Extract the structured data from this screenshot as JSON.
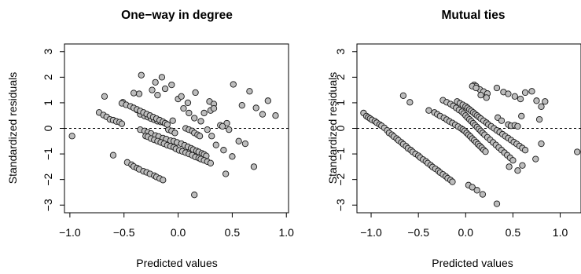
{
  "chart_data": [
    {
      "type": "scatter",
      "title": "One−way in degree",
      "xlabel": "Predicted values",
      "ylabel": "Standardized residuals",
      "xlim": [
        -1.05,
        1.02
      ],
      "ylim": [
        -3.3,
        3.3
      ],
      "xticks": [
        -1.0,
        -0.5,
        0.0,
        0.5,
        1.0
      ],
      "xtick_labels": [
        "−1.0",
        "−0.5",
        "0.0",
        "0.5",
        "1.0"
      ],
      "yticks": [
        -3,
        -2,
        -1,
        0,
        1,
        2,
        3
      ],
      "ytick_labels": [
        "−3",
        "−2",
        "−1",
        "0",
        "1",
        "2",
        "3"
      ],
      "reference_line_y": 0,
      "grid": false,
      "marker_color": "#bdbdbd",
      "x": [
        -0.98,
        -0.73,
        -0.69,
        -0.66,
        -0.63,
        -0.6,
        -0.57,
        -0.54,
        -0.52,
        -0.68,
        -0.6,
        -0.51,
        -0.47,
        -0.43,
        -0.41,
        -0.38,
        -0.36,
        -0.32,
        -0.29,
        -0.26,
        -0.22,
        -0.2,
        -0.17,
        -0.14,
        -0.38,
        -0.35,
        -0.31,
        -0.28,
        -0.25,
        -0.22,
        -0.19,
        -0.16,
        -0.13,
        -0.11,
        -0.09,
        -0.06,
        -0.03,
        -0.35,
        -0.31,
        -0.28,
        -0.25,
        -0.21,
        -0.18,
        -0.14,
        -0.11,
        -0.07,
        -0.04,
        -0.01,
        0.03,
        0.06,
        0.09,
        0.12,
        0.14,
        0.17,
        0.19,
        0.22,
        0.24,
        0.26,
        -0.3,
        -0.28,
        -0.25,
        -0.22,
        -0.19,
        -0.16,
        -0.13,
        -0.1,
        -0.07,
        -0.04,
        -0.02,
        0.01,
        0.04,
        0.07,
        0.1,
        0.13,
        0.16,
        0.19,
        0.21,
        0.24,
        0.27,
        0.3,
        -0.52,
        -0.48,
        -0.44,
        -0.41,
        -0.38,
        -0.35,
        -0.32,
        -0.29,
        -0.26,
        -0.23,
        -0.2,
        -0.17,
        -0.14,
        -0.12,
        -0.1,
        0.07,
        0.1,
        0.13,
        0.15,
        0.18,
        0.2,
        -0.24,
        -0.19,
        -0.12,
        -0.06,
        0.0,
        0.05,
        0.1,
        0.15,
        0.21,
        0.27,
        0.31,
        0.35,
        0.42,
        0.5,
        0.56,
        0.62,
        -0.36,
        -0.34,
        -0.21,
        -0.15,
        -0.05,
        0.03,
        0.09,
        0.16,
        0.24,
        0.29,
        0.33,
        0.45,
        0.51,
        0.59,
        0.66,
        0.72,
        0.78,
        0.83,
        0.9,
        -0.41,
        0.15,
        0.44,
        0.7,
        0.39,
        0.41,
        0.47,
        0.3,
        0.33
      ],
      "y": [
        -0.3,
        0.62,
        0.52,
        0.45,
        0.35,
        0.32,
        0.27,
        0.24,
        0.18,
        1.25,
        -1.05,
        1.02,
        -1.33,
        -1.42,
        -1.49,
        -1.55,
        -1.6,
        -1.68,
        -1.72,
        -1.78,
        -1.85,
        -1.9,
        -1.96,
        -2.02,
        0.72,
        0.55,
        0.48,
        0.44,
        0.38,
        0.33,
        0.28,
        0.25,
        0.22,
        0.18,
        -0.05,
        -0.1,
        -0.18,
        -0.05,
        -0.1,
        -0.15,
        -0.2,
        -0.28,
        -0.32,
        -0.38,
        -0.42,
        -0.48,
        -0.5,
        -0.55,
        -0.6,
        -0.66,
        -0.72,
        -0.78,
        -0.83,
        -0.88,
        -0.92,
        -0.98,
        -1.02,
        -1.08,
        -0.3,
        -0.33,
        -0.4,
        -0.45,
        -0.5,
        -0.55,
        -0.6,
        -0.66,
        -0.7,
        -0.74,
        -0.8,
        -0.86,
        -0.9,
        -0.95,
        -1.0,
        -1.05,
        -1.12,
        -1.16,
        -1.2,
        -1.25,
        -1.3,
        -1.36,
        0.98,
        0.92,
        0.86,
        0.8,
        0.74,
        0.68,
        0.62,
        0.56,
        0.5,
        0.44,
        0.38,
        0.32,
        0.26,
        0.2,
        0.15,
        0.0,
        -0.05,
        -0.1,
        -0.18,
        -0.25,
        -0.3,
        1.5,
        1.3,
        1.55,
        1.7,
        1.15,
        0.78,
        0.6,
        0.4,
        0.28,
        -0.05,
        -0.3,
        -0.65,
        -0.85,
        -1.1,
        -0.5,
        -0.6,
        1.35,
        2.08,
        1.8,
        2.0,
        0.3,
        1.25,
        1.0,
        1.4,
        0.6,
        1.05,
        0.95,
        0.2,
        1.72,
        0.9,
        1.45,
        0.8,
        0.55,
        1.08,
        0.5,
        1.38,
        -2.6,
        -1.78,
        -1.5,
        0.12,
        0.08,
        -0.05,
        0.7,
        0.78
      ]
    },
    {
      "type": "scatter",
      "title": "Mutual ties",
      "xlabel": "Predicted values",
      "ylabel": "Standardized residuals",
      "xlim": [
        -1.15,
        1.22
      ],
      "ylim": [
        -3.3,
        3.3
      ],
      "xticks": [
        -1.0,
        -0.5,
        0.0,
        0.5,
        1.0
      ],
      "xtick_labels": [
        "−1.0",
        "−0.5",
        "0.0",
        "0.5",
        "1.0"
      ],
      "yticks": [
        -3,
        -2,
        -1,
        0,
        1,
        2,
        3
      ],
      "ytick_labels": [
        "−3",
        "−2",
        "−1",
        "0",
        "1",
        "2",
        "3"
      ],
      "reference_line_y": 0,
      "grid": false,
      "marker_color": "#bdbdbd",
      "x": [
        -1.08,
        -1.05,
        -1.03,
        -1.01,
        -0.99,
        -0.96,
        -0.94,
        -0.91,
        -0.89,
        -0.86,
        -0.83,
        -0.81,
        -0.78,
        -0.76,
        -0.73,
        -0.71,
        -0.68,
        -0.66,
        -0.63,
        -0.61,
        -0.58,
        -0.56,
        -0.53,
        -0.5,
        -0.48,
        -0.45,
        -0.42,
        -0.4,
        -0.37,
        -0.35,
        -0.32,
        -0.29,
        -0.27,
        -0.24,
        -0.21,
        -0.19,
        -0.16,
        -0.14,
        -0.66,
        -0.59,
        -0.39,
        -0.33,
        -0.3,
        -0.27,
        -0.23,
        -0.2,
        -0.17,
        -0.14,
        -0.11,
        -0.08,
        -0.05,
        -0.03,
        -0.01,
        0.01,
        0.03,
        0.05,
        0.07,
        0.09,
        0.11,
        0.13,
        0.15,
        0.17,
        0.19,
        0.21,
        -0.24,
        -0.2,
        -0.16,
        -0.13,
        -0.1,
        -0.07,
        -0.04,
        -0.02,
        0.0,
        0.02,
        0.04,
        0.06,
        0.08,
        0.1,
        0.12,
        0.14,
        0.16,
        0.18,
        0.2,
        0.23,
        0.26,
        0.29,
        0.32,
        0.35,
        0.38,
        0.41,
        0.44,
        0.47,
        0.5,
        -0.09,
        -0.06,
        -0.03,
        0.0,
        0.02,
        0.04,
        0.06,
        0.08,
        0.1,
        0.12,
        0.14,
        0.16,
        0.19,
        0.22,
        0.24,
        0.27,
        0.3,
        0.33,
        0.36,
        0.39,
        0.42,
        0.45,
        0.48,
        0.51,
        0.54,
        0.57,
        0.6,
        0.09,
        0.11,
        0.15,
        0.19,
        0.23,
        0.03,
        0.07,
        0.12,
        0.18,
        0.33,
        0.4,
        0.45,
        0.52,
        0.58,
        0.63,
        0.7,
        0.75,
        0.8,
        0.34,
        0.38,
        0.45,
        0.48,
        0.52,
        0.55,
        0.59,
        0.78,
        0.84,
        0.46,
        0.63,
        0.74,
        0.8,
        0.55,
        0.6,
        1.18,
        0.07,
        0.11,
        0.16,
        0.22,
        0.33
      ],
      "y": [
        0.6,
        0.48,
        0.43,
        0.38,
        0.33,
        0.28,
        0.22,
        0.15,
        0.1,
        0.02,
        -0.08,
        -0.18,
        -0.25,
        -0.32,
        -0.4,
        -0.47,
        -0.55,
        -0.62,
        -0.7,
        -0.78,
        -0.85,
        -0.92,
        -1.0,
        -1.07,
        -1.14,
        -1.22,
        -1.29,
        -1.36,
        -1.44,
        -1.51,
        -1.58,
        -1.66,
        -1.73,
        -1.8,
        -1.88,
        -1.95,
        -2.02,
        -2.09,
        1.28,
        1.02,
        0.7,
        0.62,
        0.55,
        0.48,
        0.41,
        0.34,
        0.27,
        0.21,
        0.14,
        0.07,
        0.0,
        -0.05,
        -0.1,
        -0.18,
        -0.25,
        -0.32,
        -0.4,
        -0.47,
        -0.54,
        -0.62,
        -0.69,
        -0.76,
        -0.84,
        -0.91,
        1.1,
        1.02,
        0.95,
        0.88,
        0.8,
        0.72,
        0.65,
        0.58,
        0.5,
        0.42,
        0.35,
        0.28,
        0.2,
        0.12,
        0.05,
        -0.03,
        -0.1,
        -0.18,
        -0.25,
        -0.35,
        -0.45,
        -0.55,
        -0.65,
        -0.75,
        -0.85,
        -0.95,
        -1.05,
        -1.15,
        -1.25,
        1.05,
        0.98,
        0.92,
        0.86,
        0.8,
        0.74,
        0.68,
        0.62,
        0.56,
        0.5,
        0.44,
        0.38,
        0.3,
        0.22,
        0.15,
        0.08,
        0.0,
        -0.08,
        -0.15,
        -0.23,
        -0.31,
        -0.38,
        -0.46,
        -0.54,
        -0.61,
        -0.69,
        -0.77,
        1.7,
        1.65,
        1.52,
        1.44,
        1.36,
        -2.22,
        -2.3,
        -2.42,
        -2.58,
        1.58,
        1.42,
        1.35,
        1.25,
        1.15,
        1.4,
        1.45,
        1.08,
        0.85,
        0.42,
        0.3,
        0.15,
        0.1,
        0.12,
        0.08,
        0.48,
        0.35,
        1.05,
        -1.5,
        -0.85,
        -1.2,
        -0.6,
        -1.65,
        -1.45,
        -0.92,
        1.65,
        1.58,
        1.3,
        1.2,
        -2.95
      ]
    }
  ]
}
